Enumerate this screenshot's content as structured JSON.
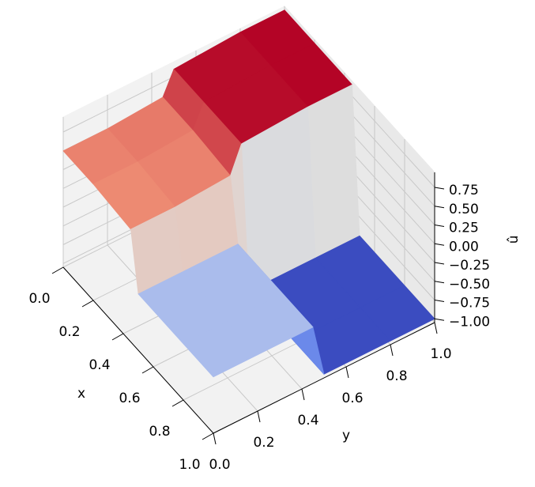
{
  "chart_data": {
    "type": "surface",
    "cmap": "coolwarm",
    "x": [
      0,
      0.2,
      0.45,
      0.5,
      0.8,
      1
    ],
    "y": [
      0,
      0.2,
      0.45,
      0.5,
      0.8,
      1
    ],
    "z": [
      [
        0.5,
        0.5,
        0.55,
        0.85,
        0.9,
        0.9
      ],
      [
        0.5,
        0.5,
        0.55,
        0.85,
        0.9,
        0.9
      ],
      [
        0.45,
        0.45,
        0.5,
        0.85,
        0.9,
        0.9
      ],
      [
        -0.3,
        -0.3,
        -0.3,
        -1,
        -1,
        -1
      ],
      [
        -0.3,
        -0.3,
        -0.3,
        -1,
        -1,
        -1
      ],
      [
        -0.3,
        -0.3,
        -0.3,
        -1,
        -1,
        -1
      ]
    ],
    "xlabel": "x",
    "ylabel": "y",
    "zlabel": "û",
    "xlim": [
      0,
      1
    ],
    "ylim": [
      0,
      1
    ],
    "zlim": [
      -1.05,
      0.95
    ],
    "xticks": [
      {
        "value": 0,
        "label": "0.0"
      },
      {
        "value": 0.2,
        "label": "0.2"
      },
      {
        "value": 0.4,
        "label": "0.4"
      },
      {
        "value": 0.6,
        "label": "0.6"
      },
      {
        "value": 0.8,
        "label": "0.8"
      },
      {
        "value": 1,
        "label": "1.0"
      }
    ],
    "yticks": [
      {
        "value": 0,
        "label": "0.0"
      },
      {
        "value": 0.2,
        "label": "0.2"
      },
      {
        "value": 0.4,
        "label": "0.4"
      },
      {
        "value": 0.6,
        "label": "0.6"
      },
      {
        "value": 0.8,
        "label": "0.8"
      },
      {
        "value": 1,
        "label": "1.0"
      }
    ],
    "zticks": [
      {
        "value": -1,
        "label": "−1.00"
      },
      {
        "value": -0.75,
        "label": "−0.75"
      },
      {
        "value": -0.5,
        "label": "−0.50"
      },
      {
        "value": -0.25,
        "label": "−0.25"
      },
      {
        "value": 0,
        "label": "0.00"
      },
      {
        "value": 0.25,
        "label": "0.25"
      },
      {
        "value": 0.5,
        "label": "0.50"
      },
      {
        "value": 0.75,
        "label": "0.75"
      }
    ],
    "grid": true
  }
}
